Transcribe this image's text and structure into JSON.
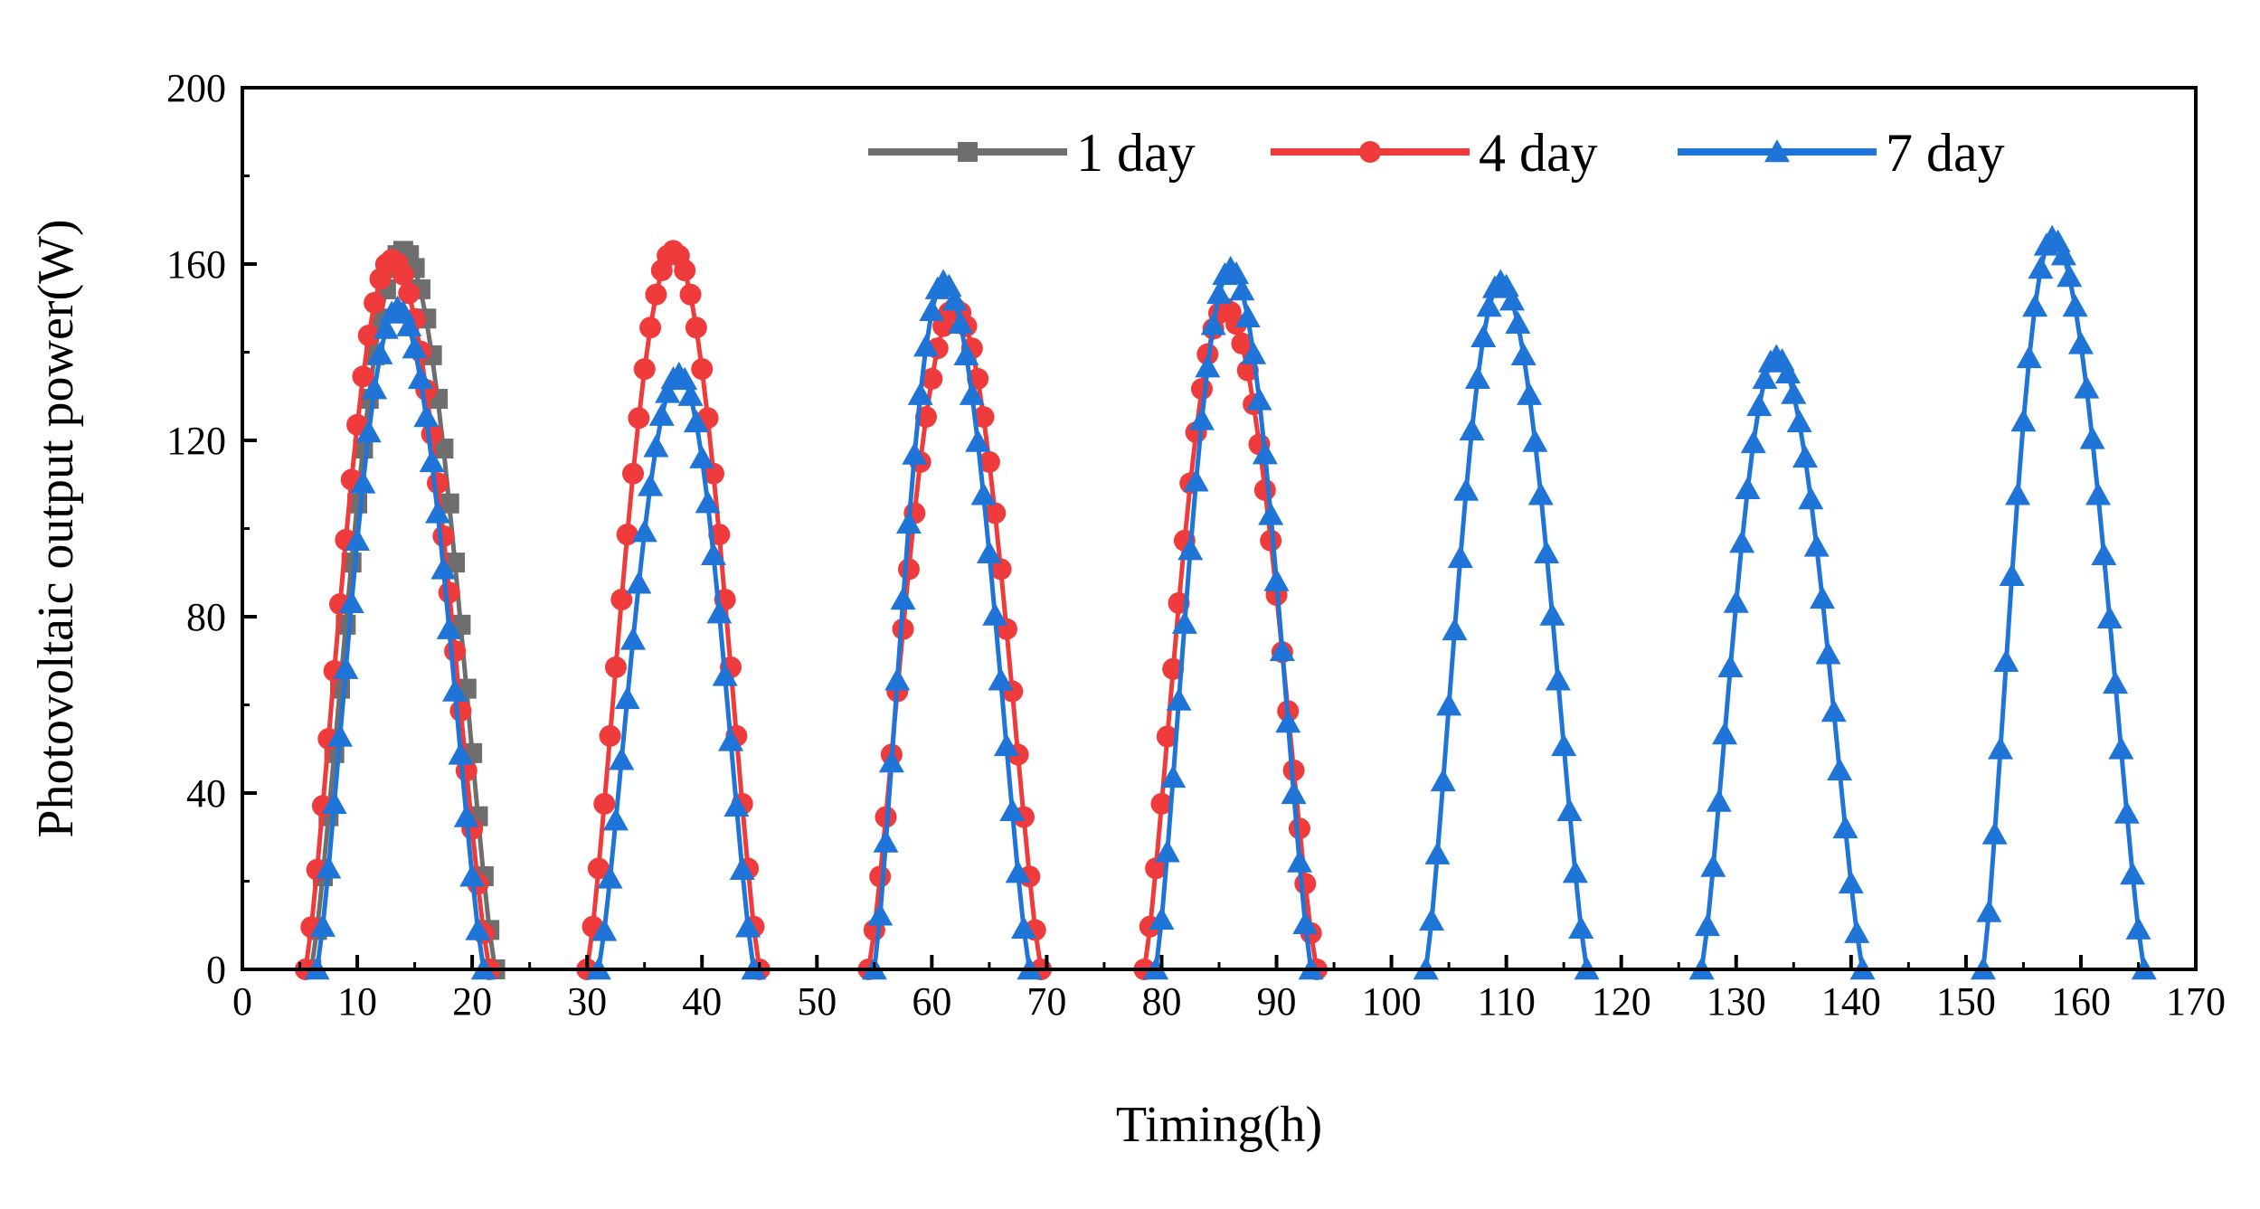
{
  "chart_data": {
    "type": "line",
    "title": "",
    "xlabel": "Timing(h)",
    "ylabel": "Photovoltaic output power(W)",
    "xlim": [
      0,
      170
    ],
    "ylim": [
      0,
      200
    ],
    "xticks": [
      0,
      10,
      20,
      30,
      40,
      50,
      60,
      70,
      80,
      90,
      100,
      110,
      120,
      130,
      140,
      150,
      160,
      170
    ],
    "yticks": [
      0,
      40,
      80,
      120,
      160,
      200
    ],
    "grid": false,
    "legend": "top-right",
    "series": [
      {
        "name": "1 day",
        "color": "#6e6e6e",
        "marker": "square",
        "days": [
          {
            "start": 6.0,
            "peak_t": 14.0,
            "end": 22.0,
            "peak": 163
          }
        ]
      },
      {
        "name": "4 day",
        "color": "#ef3b3b",
        "marker": "circle",
        "days": [
          {
            "start": 5.5,
            "peak_t": 13.0,
            "end": 21.5,
            "peak": 161
          },
          {
            "start": 30.0,
            "peak_t": 37.5,
            "end": 45.0,
            "peak": 163
          },
          {
            "start": 54.5,
            "peak_t": 62.0,
            "end": 69.5,
            "peak": 150
          },
          {
            "start": 78.5,
            "peak_t": 85.5,
            "end": 93.5,
            "peak": 150
          }
        ]
      },
      {
        "name": "7 day",
        "color": "#1f74d8",
        "marker": "triangle",
        "days": [
          {
            "start": 6.5,
            "peak_t": 13.5,
            "end": 21.0,
            "peak": 150
          },
          {
            "start": 31.0,
            "peak_t": 38.0,
            "end": 44.5,
            "peak": 135
          },
          {
            "start": 55.0,
            "peak_t": 61.0,
            "end": 68.5,
            "peak": 156
          },
          {
            "start": 79.5,
            "peak_t": 86.0,
            "end": 93.0,
            "peak": 159
          },
          {
            "start": 103.0,
            "peak_t": 109.5,
            "end": 117.0,
            "peak": 156
          },
          {
            "start": 127.0,
            "peak_t": 133.5,
            "end": 141.0,
            "peak": 139
          },
          {
            "start": 151.5,
            "peak_t": 157.5,
            "end": 165.5,
            "peak": 166
          }
        ]
      }
    ]
  }
}
